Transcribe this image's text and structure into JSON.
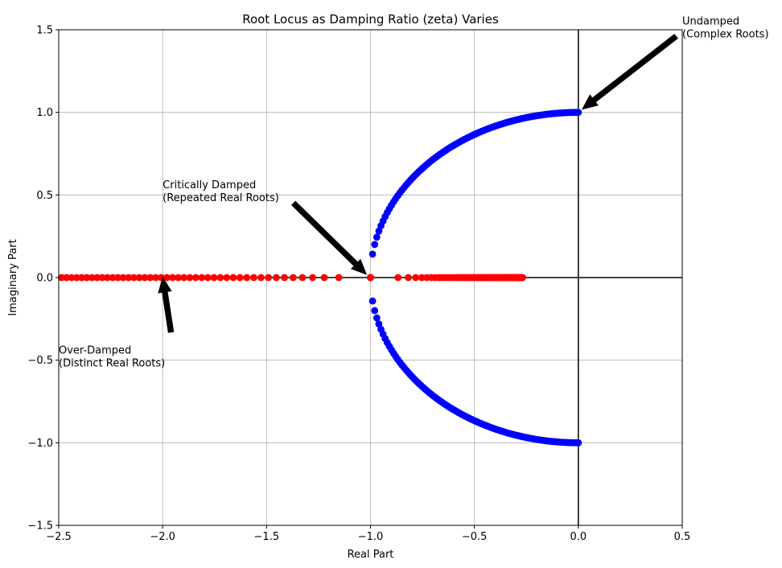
{
  "chart_data": {
    "type": "scatter",
    "title": "Root Locus as Damping Ratio (zeta) Varies",
    "xlabel": "Real Part",
    "ylabel": "Imaginary Part",
    "xlim": [
      -2.5,
      0.5
    ],
    "ylim": [
      -1.5,
      1.5
    ],
    "x_ticks": [
      -2.5,
      -2.0,
      -1.5,
      -1.0,
      -0.5,
      0.0,
      0.5
    ],
    "x_tick_labels": [
      "−2.5",
      "−2.0",
      "−1.5",
      "−1.0",
      "−0.5",
      "0.0",
      "0.5"
    ],
    "y_ticks": [
      -1.5,
      -1.0,
      -0.5,
      0.0,
      0.5,
      1.0,
      1.5
    ],
    "y_tick_labels": [
      "−1.5",
      "−1.0",
      "−0.5",
      "0.0",
      "0.5",
      "1.0",
      "1.5"
    ],
    "grid": true,
    "reference_lines": {
      "x": 0,
      "y": 0,
      "color": "#000000"
    },
    "series": [
      {
        "kind": "complex_roots",
        "color": "#0000ff",
        "zeta_range": [
          0.0,
          1.0
        ],
        "count": 100,
        "description_values": "roots at -zeta ± j*sqrt(1-zeta^2)"
      },
      {
        "kind": "real_roots",
        "color": "#ff0000",
        "zeta_range": [
          1.0,
          2.0
        ],
        "count": 100,
        "description_values": "roots at -zeta ± sqrt(zeta^2-1), clipped to x >= -2.5"
      }
    ],
    "annotations": [
      {
        "text_lines": [
          "Undamped",
          "(Complex Roots)"
        ],
        "text_at": [
          0.5,
          1.55
        ],
        "arrow_tip": [
          0.02,
          1.02
        ],
        "arrow_tail": [
          0.47,
          1.46
        ]
      },
      {
        "text_lines": [
          "Critically Damped",
          "(Repeated Real Roots)"
        ],
        "text_at": [
          -2.0,
          0.56
        ],
        "arrow_tip": [
          -1.02,
          0.02
        ],
        "arrow_tail": [
          -1.37,
          0.45
        ]
      },
      {
        "text_lines": [
          "Over-Damped",
          "(Distinct Real Roots)"
        ],
        "text_at": [
          -2.5,
          -0.44
        ],
        "arrow_tip": [
          -2.0,
          0.0
        ],
        "arrow_tail": [
          -1.96,
          -0.33
        ]
      }
    ]
  }
}
